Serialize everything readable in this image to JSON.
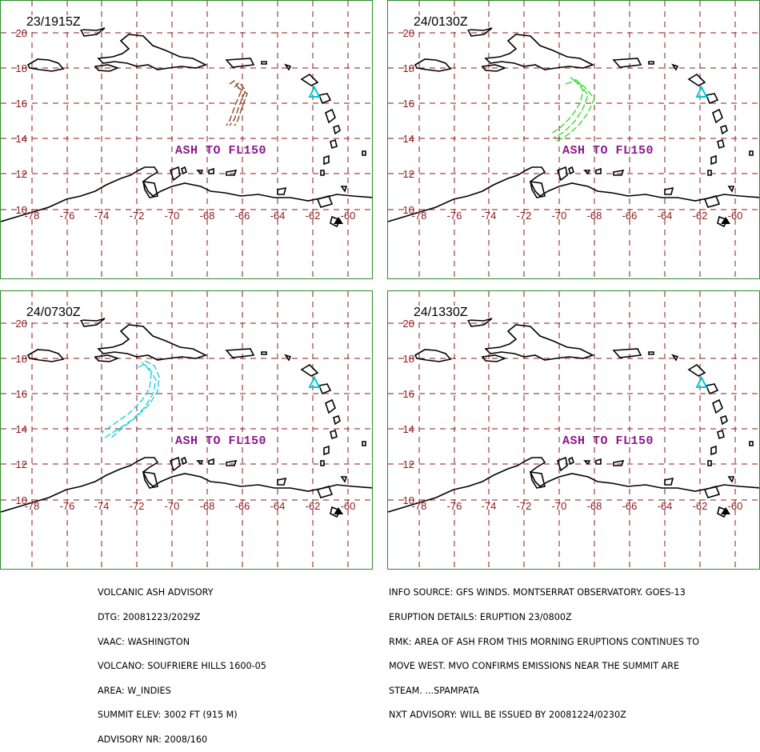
{
  "colors": {
    "frame": "#2e8b2e",
    "grid": "#8b1a1a",
    "coast": "#000000",
    "ash_label": "#8a1a8a",
    "volcano": "#00c8d8"
  },
  "map": {
    "lon_labels": [
      "-78",
      "-76",
      "-74",
      "-72",
      "-70",
      "-68",
      "-66",
      "-64",
      "-62",
      "-60"
    ],
    "lat_labels": [
      "20",
      "18",
      "16",
      "14",
      "12",
      "10"
    ],
    "volcano_marker": "volcano-triangle-icon"
  },
  "panels": [
    {
      "time": "23/1915Z",
      "ash_label": "ASH TO FL150",
      "ash_color": "#8b4a2a"
    },
    {
      "time": "24/0130Z",
      "ash_label": "ASH TO FL150",
      "ash_color": "#33dd33"
    },
    {
      "time": "24/0730Z",
      "ash_label": "ASH TO FL150",
      "ash_color": "#22d0d8"
    },
    {
      "time": "24/1330Z",
      "ash_label": "ASH TO FL150",
      "ash_color": ""
    }
  ],
  "advisory": {
    "left": [
      "VOLCANIC ASH ADVISORY",
      "DTG: 20081223/2029Z",
      "VAAC: WASHINGTON",
      "VOLCANO: SOUFRIERE HILLS 1600-05",
      "AREA: W_INDIES",
      "SUMMIT ELEV: 3002 FT (915 M)",
      "ADVISORY NR: 2008/160"
    ],
    "right": [
      "INFO SOURCE: GFS WINDS. MONTSERRAT OBSERVATORY. GOES-13",
      "ERUPTION DETAILS: ERUPTION 23/0800Z",
      "RMK: AREA OF ASH FROM THIS MORNING ERUPTIONS CONTINUES TO",
      "MOVE WEST. MVO CONFIRMS EMISSIONS NEAR THE SUMMIT ARE",
      "STEAM. ...SPAMPATA",
      "NXT ADVISORY: WILL BE ISSUED BY 20081224/0230Z"
    ]
  }
}
